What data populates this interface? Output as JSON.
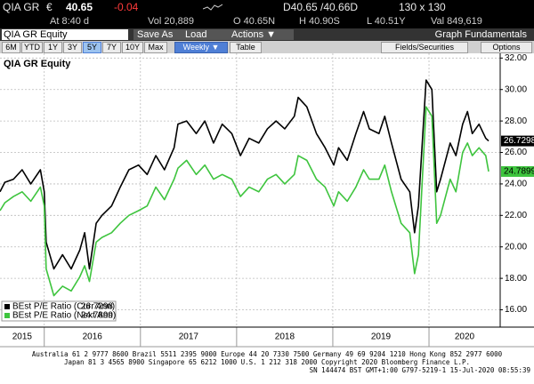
{
  "header": {
    "ticker": "QIA GR",
    "currency": "€",
    "price": "40.65",
    "change": "-0.04",
    "bid_ask": "D40.65 /40.66D",
    "size": "130 x 130",
    "time": "At 8:40 d",
    "volume": "Vol 20,889",
    "open": "O 40.65N",
    "high": "H 40.90S",
    "low": "L 40.51Y",
    "value": "Val 849,619"
  },
  "toolbar": {
    "security": "QIA GR Equity",
    "buttons": [
      "Save As",
      "Load",
      "Actions ▼"
    ],
    "title": "Graph Fundamentals"
  },
  "tabs": {
    "periods": [
      "6M",
      "YTD",
      "1Y",
      "3Y",
      "5Y",
      "7Y",
      "10Y",
      "Max"
    ],
    "selected_period_index": 4,
    "frequency": "Weekly ▼",
    "table": "Table",
    "fields": "Fields/Securities",
    "options": "Options"
  },
  "chart_data": {
    "type": "line",
    "title": "QIA GR Equity",
    "x": [
      2015.54,
      2015.59,
      2015.68,
      2015.77,
      2015.86,
      2015.96,
      2016.0,
      2016.02,
      2016.1,
      2016.19,
      2016.28,
      2016.37,
      2016.42,
      2016.47,
      2016.54,
      2016.6,
      2016.7,
      2016.79,
      2016.88,
      2016.98,
      2017.07,
      2017.16,
      2017.25,
      2017.35,
      2017.39,
      2017.48,
      2017.58,
      2017.67,
      2017.76,
      2017.85,
      2017.95,
      2018.04,
      2018.13,
      2018.23,
      2018.32,
      2018.41,
      2018.5,
      2018.6,
      2018.64,
      2018.73,
      2018.83,
      2018.92,
      2019.01,
      2019.06,
      2019.15,
      2019.24,
      2019.32,
      2019.38,
      2019.48,
      2019.54,
      2019.61,
      2019.71,
      2019.8,
      2019.85,
      2019.89,
      2019.97,
      2020.03,
      2020.08,
      2020.12,
      2020.22,
      2020.28,
      2020.35,
      2020.4,
      2020.45,
      2020.52,
      2020.59,
      2020.62
    ],
    "series": [
      {
        "name": "BEst P/E Ratio (Curr Ann)",
        "color": "#000000",
        "values": [
          23.5,
          24.1,
          24.3,
          24.9,
          24.0,
          24.9,
          23.5,
          20.3,
          18.6,
          19.5,
          18.6,
          19.8,
          20.9,
          18.6,
          21.5,
          22.0,
          22.6,
          23.8,
          24.9,
          25.2,
          24.6,
          25.8,
          24.9,
          26.3,
          27.8,
          28.0,
          27.2,
          28.0,
          26.6,
          27.8,
          27.2,
          25.8,
          26.9,
          26.6,
          27.5,
          28.0,
          27.5,
          28.3,
          29.5,
          28.9,
          27.2,
          26.3,
          25.2,
          26.3,
          25.5,
          27.2,
          28.6,
          27.5,
          27.2,
          28.3,
          26.6,
          24.3,
          23.5,
          20.9,
          22.6,
          30.6,
          30.0,
          23.5,
          24.3,
          26.6,
          25.8,
          27.8,
          28.6,
          27.2,
          27.8,
          26.9,
          26.7298
        ]
      },
      {
        "name": "BEst P/E Ratio (Next Ann)",
        "color": "#3ec43e",
        "values": [
          22.3,
          22.8,
          23.2,
          23.5,
          22.9,
          23.8,
          22.6,
          18.6,
          16.9,
          17.5,
          17.2,
          18.1,
          18.8,
          17.8,
          20.3,
          20.6,
          20.9,
          21.5,
          22.0,
          22.3,
          22.6,
          23.8,
          23.0,
          24.3,
          25.0,
          25.5,
          24.6,
          25.2,
          24.3,
          24.6,
          24.3,
          23.2,
          23.8,
          23.5,
          24.3,
          24.6,
          24.0,
          24.6,
          25.8,
          25.5,
          24.3,
          23.8,
          22.6,
          23.5,
          22.9,
          23.8,
          24.9,
          24.3,
          24.3,
          25.2,
          23.5,
          21.5,
          20.9,
          18.3,
          19.5,
          28.9,
          28.3,
          21.5,
          22.0,
          24.3,
          23.5,
          26.0,
          26.6,
          25.8,
          26.3,
          25.8,
          24.7899
        ]
      }
    ],
    "xlim": [
      2015.54,
      2020.74
    ],
    "xticks": [
      {
        "value": 2015.77,
        "label": "2015"
      },
      {
        "value": 2016.5,
        "label": "2016"
      },
      {
        "value": 2017.5,
        "label": "2017"
      },
      {
        "value": 2018.5,
        "label": "2018"
      },
      {
        "value": 2019.5,
        "label": "2019"
      },
      {
        "value": 2020.37,
        "label": "2020"
      }
    ],
    "xgrid": [
      2016,
      2017,
      2018,
      2019,
      2020
    ],
    "ylim": [
      14.9,
      32.3
    ],
    "yticks": [
      {
        "value": 16,
        "label": "16.00"
      },
      {
        "value": 18,
        "label": "18.00"
      },
      {
        "value": 20,
        "label": "20.00"
      },
      {
        "value": 22,
        "label": "22.00"
      },
      {
        "value": 24,
        "label": "24.00"
      },
      {
        "value": 26,
        "label": "26.00"
      },
      {
        "value": 28,
        "label": "28.00"
      },
      {
        "value": 30,
        "label": "30.00"
      },
      {
        "value": 32,
        "label": "32.00"
      }
    ],
    "grid": true,
    "legend": "lower left"
  },
  "footer": {
    "lines": [
      "Australia 61 2 9777 8600 Brazil 5511 2395 9000 Europe 44 20 7330 7500 Germany 49 69 9204 1210 Hong Kong 852 2977 6000",
      "Japan 81 3 4565 8900      Singapore 65 6212 1000      U.S. 1 212 318 2000      Copyright 2020 Bloomberg Finance L.P.",
      "SN 144474 BST  GMT+1:00 G797-5219-1 15-Jul-2020 08:55:39"
    ]
  }
}
